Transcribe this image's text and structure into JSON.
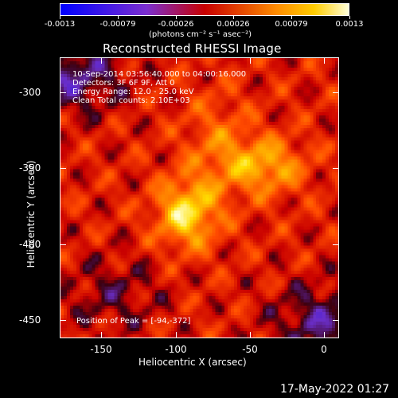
{
  "colorbar": {
    "tick_labels": [
      "-0.0013",
      "-0.00079",
      "-0.00026",
      "0.00026",
      "0.00079",
      "0.0013"
    ],
    "unit_label": "(photons cm⁻² s⁻¹ asec⁻²)",
    "colors": {
      "low": "#0000ff",
      "mid_low": "#7c2fcf",
      "mid": "#c80000",
      "mid_high": "#ff8c00",
      "high": "#ffffd8"
    }
  },
  "plot": {
    "title": "Reconstructed RHESSI Image",
    "info_lines": [
      "10-Sep-2014 03:56:40.000 to 04:00:16.000",
      "Detectors: 3F 6F 9F, Att 0",
      "Energy Range: 12.0 - 25.0 keV",
      "Clean     Total counts: 2.10E+03"
    ],
    "peak_text": "Position of Peak = [-94,-372]",
    "x_label": "Heliocentric X (arcsec)",
    "y_label": "Heliocentric Y (arcsec)",
    "x_ticks": [
      "-150",
      "-100",
      "-50",
      "0"
    ],
    "y_ticks": [
      "-300",
      "-350",
      "-400",
      "-450"
    ],
    "x_range": [
      -178,
      10
    ],
    "y_range": [
      -277,
      -462
    ]
  },
  "footer": {
    "timestamp": "17-May-2022 01:27"
  }
}
